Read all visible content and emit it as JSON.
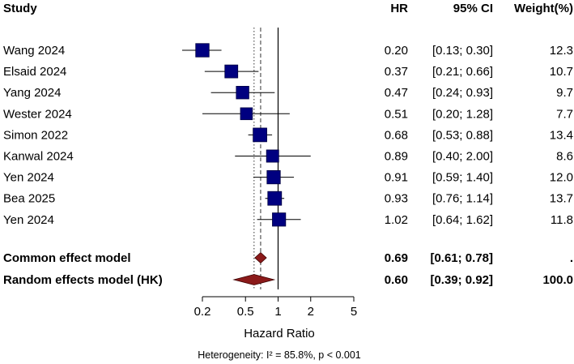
{
  "chart_data": {
    "type": "forest",
    "headers": {
      "study": "Study",
      "hr": "HR",
      "ci": "95% CI",
      "weight": "Weight(%)"
    },
    "studies": [
      {
        "name": "Wang 2024",
        "hr": 0.2,
        "lower": 0.13,
        "upper": 0.3,
        "hr_text": "0.20",
        "ci_text": "[0.13; 0.30]",
        "weight_text": "12.3"
      },
      {
        "name": "Elsaid 2024",
        "hr": 0.37,
        "lower": 0.21,
        "upper": 0.66,
        "hr_text": "0.37",
        "ci_text": "[0.21; 0.66]",
        "weight_text": "10.7"
      },
      {
        "name": "Yang 2024",
        "hr": 0.47,
        "lower": 0.24,
        "upper": 0.93,
        "hr_text": "0.47",
        "ci_text": "[0.24; 0.93]",
        "weight_text": "9.7"
      },
      {
        "name": "Wester 2024",
        "hr": 0.51,
        "lower": 0.2,
        "upper": 1.28,
        "hr_text": "0.51",
        "ci_text": "[0.20; 1.28]",
        "weight_text": "7.7"
      },
      {
        "name": "Simon 2022",
        "hr": 0.68,
        "lower": 0.53,
        "upper": 0.88,
        "hr_text": "0.68",
        "ci_text": "[0.53; 0.88]",
        "weight_text": "13.4"
      },
      {
        "name": "Kanwal 2024",
        "hr": 0.89,
        "lower": 0.4,
        "upper": 2.0,
        "hr_text": "0.89",
        "ci_text": "[0.40; 2.00]",
        "weight_text": "8.6"
      },
      {
        "name": "Yen 2024",
        "hr": 0.91,
        "lower": 0.59,
        "upper": 1.4,
        "hr_text": "0.91",
        "ci_text": "[0.59; 1.40]",
        "weight_text": "12.0"
      },
      {
        "name": "Bea 2025",
        "hr": 0.93,
        "lower": 0.76,
        "upper": 1.14,
        "hr_text": "0.93",
        "ci_text": "[0.76; 1.14]",
        "weight_text": "13.7"
      },
      {
        "name": "Yen 2024",
        "hr": 1.02,
        "lower": 0.64,
        "upper": 1.62,
        "hr_text": "1.02",
        "ci_text": "[0.64; 1.62]",
        "weight_text": "11.8"
      }
    ],
    "pooled": [
      {
        "name": "Common effect model",
        "hr": 0.69,
        "lower": 0.61,
        "upper": 0.78,
        "hr_text": "0.69",
        "ci_text": "[0.61; 0.78]",
        "weight_text": "."
      },
      {
        "name": "Random effects model (HK)",
        "hr": 0.6,
        "lower": 0.39,
        "upper": 0.92,
        "hr_text": "0.60",
        "ci_text": "[0.39; 0.92]",
        "weight_text": "100.0"
      }
    ],
    "x_axis": {
      "label": "Hazard Ratio",
      "scale": "log",
      "ticks": [
        0.2,
        0.5,
        1,
        2,
        5
      ],
      "tick_labels": [
        "0.2",
        "0.5",
        "1",
        "2",
        "5"
      ],
      "range": [
        0.2,
        5
      ]
    },
    "reference_line": 1,
    "heterogeneity": "Heterogeneity: I² = 85.8%, p < 0.001",
    "colors": {
      "square": "#000080",
      "diamond": "#8b1a1a",
      "line": "#000000"
    }
  }
}
